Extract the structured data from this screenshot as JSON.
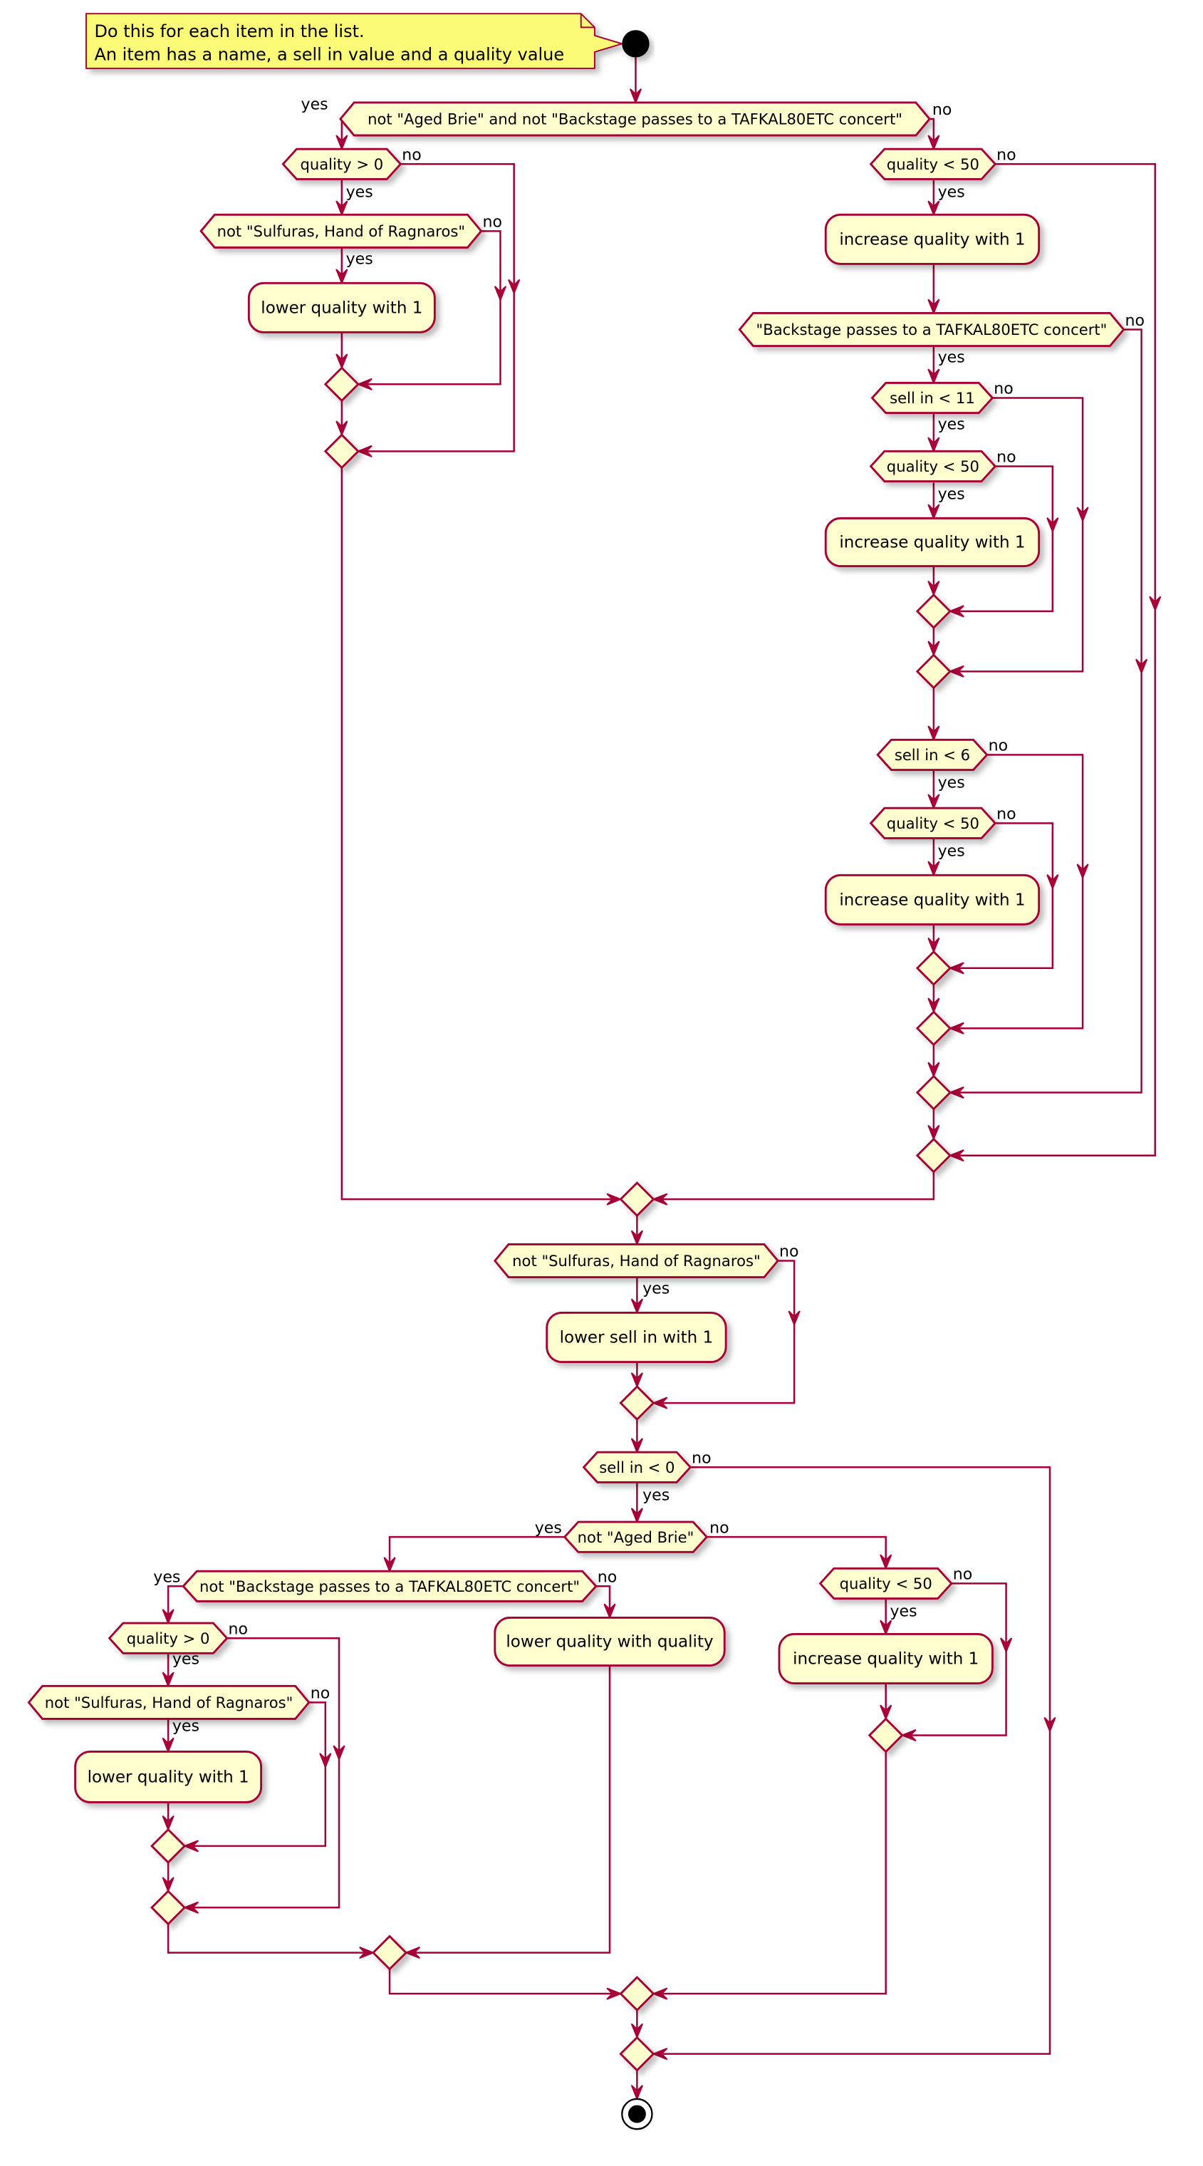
{
  "colors": {
    "border": "#A80036",
    "fill": "#FEFECE",
    "note_fill": "#FBFB77",
    "start": "#000000"
  },
  "note": {
    "lines": [
      "Do this for each item in the list.",
      "An item has a name, a sell in value and a quality value"
    ]
  },
  "branch_labels": {
    "yes": "yes",
    "no": "no"
  },
  "decisions": [
    {
      "text": "not \"Aged Brie\" and not \"Backstage passes to a TAFKAL80ETC concert\""
    },
    {
      "text": "quality > 0"
    },
    {
      "text": "not \"Sulfuras, Hand of Ragnaros\""
    },
    {
      "text": "quality < 50"
    },
    {
      "text": "\"Backstage passes to a TAFKAL80ETC concert\""
    },
    {
      "text": "sell in < 11"
    },
    {
      "text": "quality < 50"
    },
    {
      "text": "sell in < 6"
    },
    {
      "text": "quality < 50"
    },
    {
      "text": "not \"Sulfuras, Hand of Ragnaros\""
    },
    {
      "text": "sell in < 0"
    },
    {
      "text": "not \"Aged Brie\""
    },
    {
      "text": "not \"Backstage passes to a TAFKAL80ETC concert\""
    },
    {
      "text": "quality > 0"
    },
    {
      "text": "not \"Sulfuras, Hand of Ragnaros\""
    },
    {
      "text": "quality < 50"
    }
  ],
  "actions": [
    {
      "text": "lower quality with 1"
    },
    {
      "text": "increase quality with 1"
    },
    {
      "text": "increase quality with 1"
    },
    {
      "text": "increase quality with 1"
    },
    {
      "text": "lower sell in with 1"
    },
    {
      "text": "lower quality with 1"
    },
    {
      "text": "lower quality with quality"
    },
    {
      "text": "increase quality with 1"
    }
  ]
}
